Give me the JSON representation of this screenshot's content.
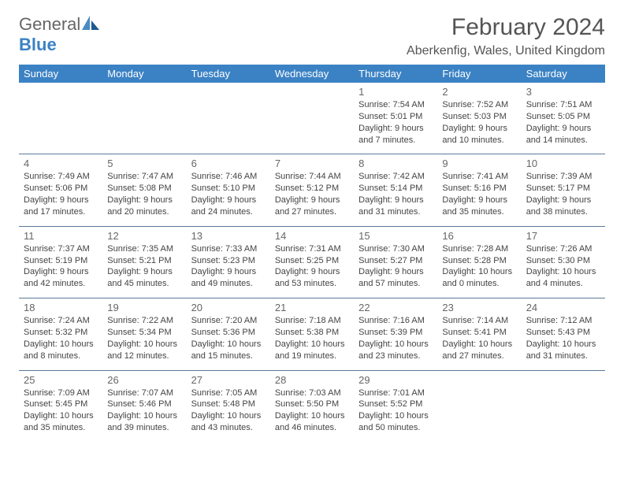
{
  "logo": {
    "general": "General",
    "blue": "Blue"
  },
  "title": "February 2024",
  "location": "Aberkenfig, Wales, United Kingdom",
  "colors": {
    "header_bg": "#3b82c4",
    "header_text": "#ffffff",
    "border": "#5a7a9a",
    "text": "#444444",
    "logo_gray": "#666666",
    "logo_blue": "#3b82c4"
  },
  "typography": {
    "title_fontsize": 30,
    "location_fontsize": 16,
    "dayhead_fontsize": 13,
    "daynum_fontsize": 13,
    "body_fontsize": 11
  },
  "day_headers": [
    "Sunday",
    "Monday",
    "Tuesday",
    "Wednesday",
    "Thursday",
    "Friday",
    "Saturday"
  ],
  "weeks": [
    [
      null,
      null,
      null,
      null,
      {
        "n": "1",
        "sr": "7:54 AM",
        "ss": "5:01 PM",
        "dl": "9 hours and 7 minutes."
      },
      {
        "n": "2",
        "sr": "7:52 AM",
        "ss": "5:03 PM",
        "dl": "9 hours and 10 minutes."
      },
      {
        "n": "3",
        "sr": "7:51 AM",
        "ss": "5:05 PM",
        "dl": "9 hours and 14 minutes."
      }
    ],
    [
      {
        "n": "4",
        "sr": "7:49 AM",
        "ss": "5:06 PM",
        "dl": "9 hours and 17 minutes."
      },
      {
        "n": "5",
        "sr": "7:47 AM",
        "ss": "5:08 PM",
        "dl": "9 hours and 20 minutes."
      },
      {
        "n": "6",
        "sr": "7:46 AM",
        "ss": "5:10 PM",
        "dl": "9 hours and 24 minutes."
      },
      {
        "n": "7",
        "sr": "7:44 AM",
        "ss": "5:12 PM",
        "dl": "9 hours and 27 minutes."
      },
      {
        "n": "8",
        "sr": "7:42 AM",
        "ss": "5:14 PM",
        "dl": "9 hours and 31 minutes."
      },
      {
        "n": "9",
        "sr": "7:41 AM",
        "ss": "5:16 PM",
        "dl": "9 hours and 35 minutes."
      },
      {
        "n": "10",
        "sr": "7:39 AM",
        "ss": "5:17 PM",
        "dl": "9 hours and 38 minutes."
      }
    ],
    [
      {
        "n": "11",
        "sr": "7:37 AM",
        "ss": "5:19 PM",
        "dl": "9 hours and 42 minutes."
      },
      {
        "n": "12",
        "sr": "7:35 AM",
        "ss": "5:21 PM",
        "dl": "9 hours and 45 minutes."
      },
      {
        "n": "13",
        "sr": "7:33 AM",
        "ss": "5:23 PM",
        "dl": "9 hours and 49 minutes."
      },
      {
        "n": "14",
        "sr": "7:31 AM",
        "ss": "5:25 PM",
        "dl": "9 hours and 53 minutes."
      },
      {
        "n": "15",
        "sr": "7:30 AM",
        "ss": "5:27 PM",
        "dl": "9 hours and 57 minutes."
      },
      {
        "n": "16",
        "sr": "7:28 AM",
        "ss": "5:28 PM",
        "dl": "10 hours and 0 minutes."
      },
      {
        "n": "17",
        "sr": "7:26 AM",
        "ss": "5:30 PM",
        "dl": "10 hours and 4 minutes."
      }
    ],
    [
      {
        "n": "18",
        "sr": "7:24 AM",
        "ss": "5:32 PM",
        "dl": "10 hours and 8 minutes."
      },
      {
        "n": "19",
        "sr": "7:22 AM",
        "ss": "5:34 PM",
        "dl": "10 hours and 12 minutes."
      },
      {
        "n": "20",
        "sr": "7:20 AM",
        "ss": "5:36 PM",
        "dl": "10 hours and 15 minutes."
      },
      {
        "n": "21",
        "sr": "7:18 AM",
        "ss": "5:38 PM",
        "dl": "10 hours and 19 minutes."
      },
      {
        "n": "22",
        "sr": "7:16 AM",
        "ss": "5:39 PM",
        "dl": "10 hours and 23 minutes."
      },
      {
        "n": "23",
        "sr": "7:14 AM",
        "ss": "5:41 PM",
        "dl": "10 hours and 27 minutes."
      },
      {
        "n": "24",
        "sr": "7:12 AM",
        "ss": "5:43 PM",
        "dl": "10 hours and 31 minutes."
      }
    ],
    [
      {
        "n": "25",
        "sr": "7:09 AM",
        "ss": "5:45 PM",
        "dl": "10 hours and 35 minutes."
      },
      {
        "n": "26",
        "sr": "7:07 AM",
        "ss": "5:46 PM",
        "dl": "10 hours and 39 minutes."
      },
      {
        "n": "27",
        "sr": "7:05 AM",
        "ss": "5:48 PM",
        "dl": "10 hours and 43 minutes."
      },
      {
        "n": "28",
        "sr": "7:03 AM",
        "ss": "5:50 PM",
        "dl": "10 hours and 46 minutes."
      },
      {
        "n": "29",
        "sr": "7:01 AM",
        "ss": "5:52 PM",
        "dl": "10 hours and 50 minutes."
      },
      null,
      null
    ]
  ],
  "labels": {
    "sunrise": "Sunrise: ",
    "sunset": "Sunset: ",
    "daylight": "Daylight: "
  }
}
